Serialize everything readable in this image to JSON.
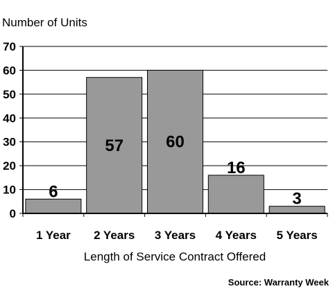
{
  "chart_data": {
    "type": "bar",
    "title": "",
    "ylabel": "Number of Units",
    "xlabel": "Length of Service Contract Offered",
    "categories": [
      "1 Year",
      "2 Years",
      "3 Years",
      "4 Years",
      "5 Years"
    ],
    "values": [
      6,
      57,
      60,
      16,
      3
    ],
    "data_labels": [
      "6",
      "57",
      "60",
      "16",
      "3"
    ],
    "ylim": [
      0,
      70
    ],
    "yticks": [
      0,
      10,
      20,
      30,
      40,
      50,
      60,
      70
    ],
    "ytick_labels": [
      "0",
      "10",
      "20",
      "30",
      "40",
      "50",
      "60",
      "70"
    ],
    "grid": true,
    "legend": "none",
    "bar_color": "#999999",
    "bar_edge_color": "#000000",
    "source": "Source: Warranty Week"
  }
}
